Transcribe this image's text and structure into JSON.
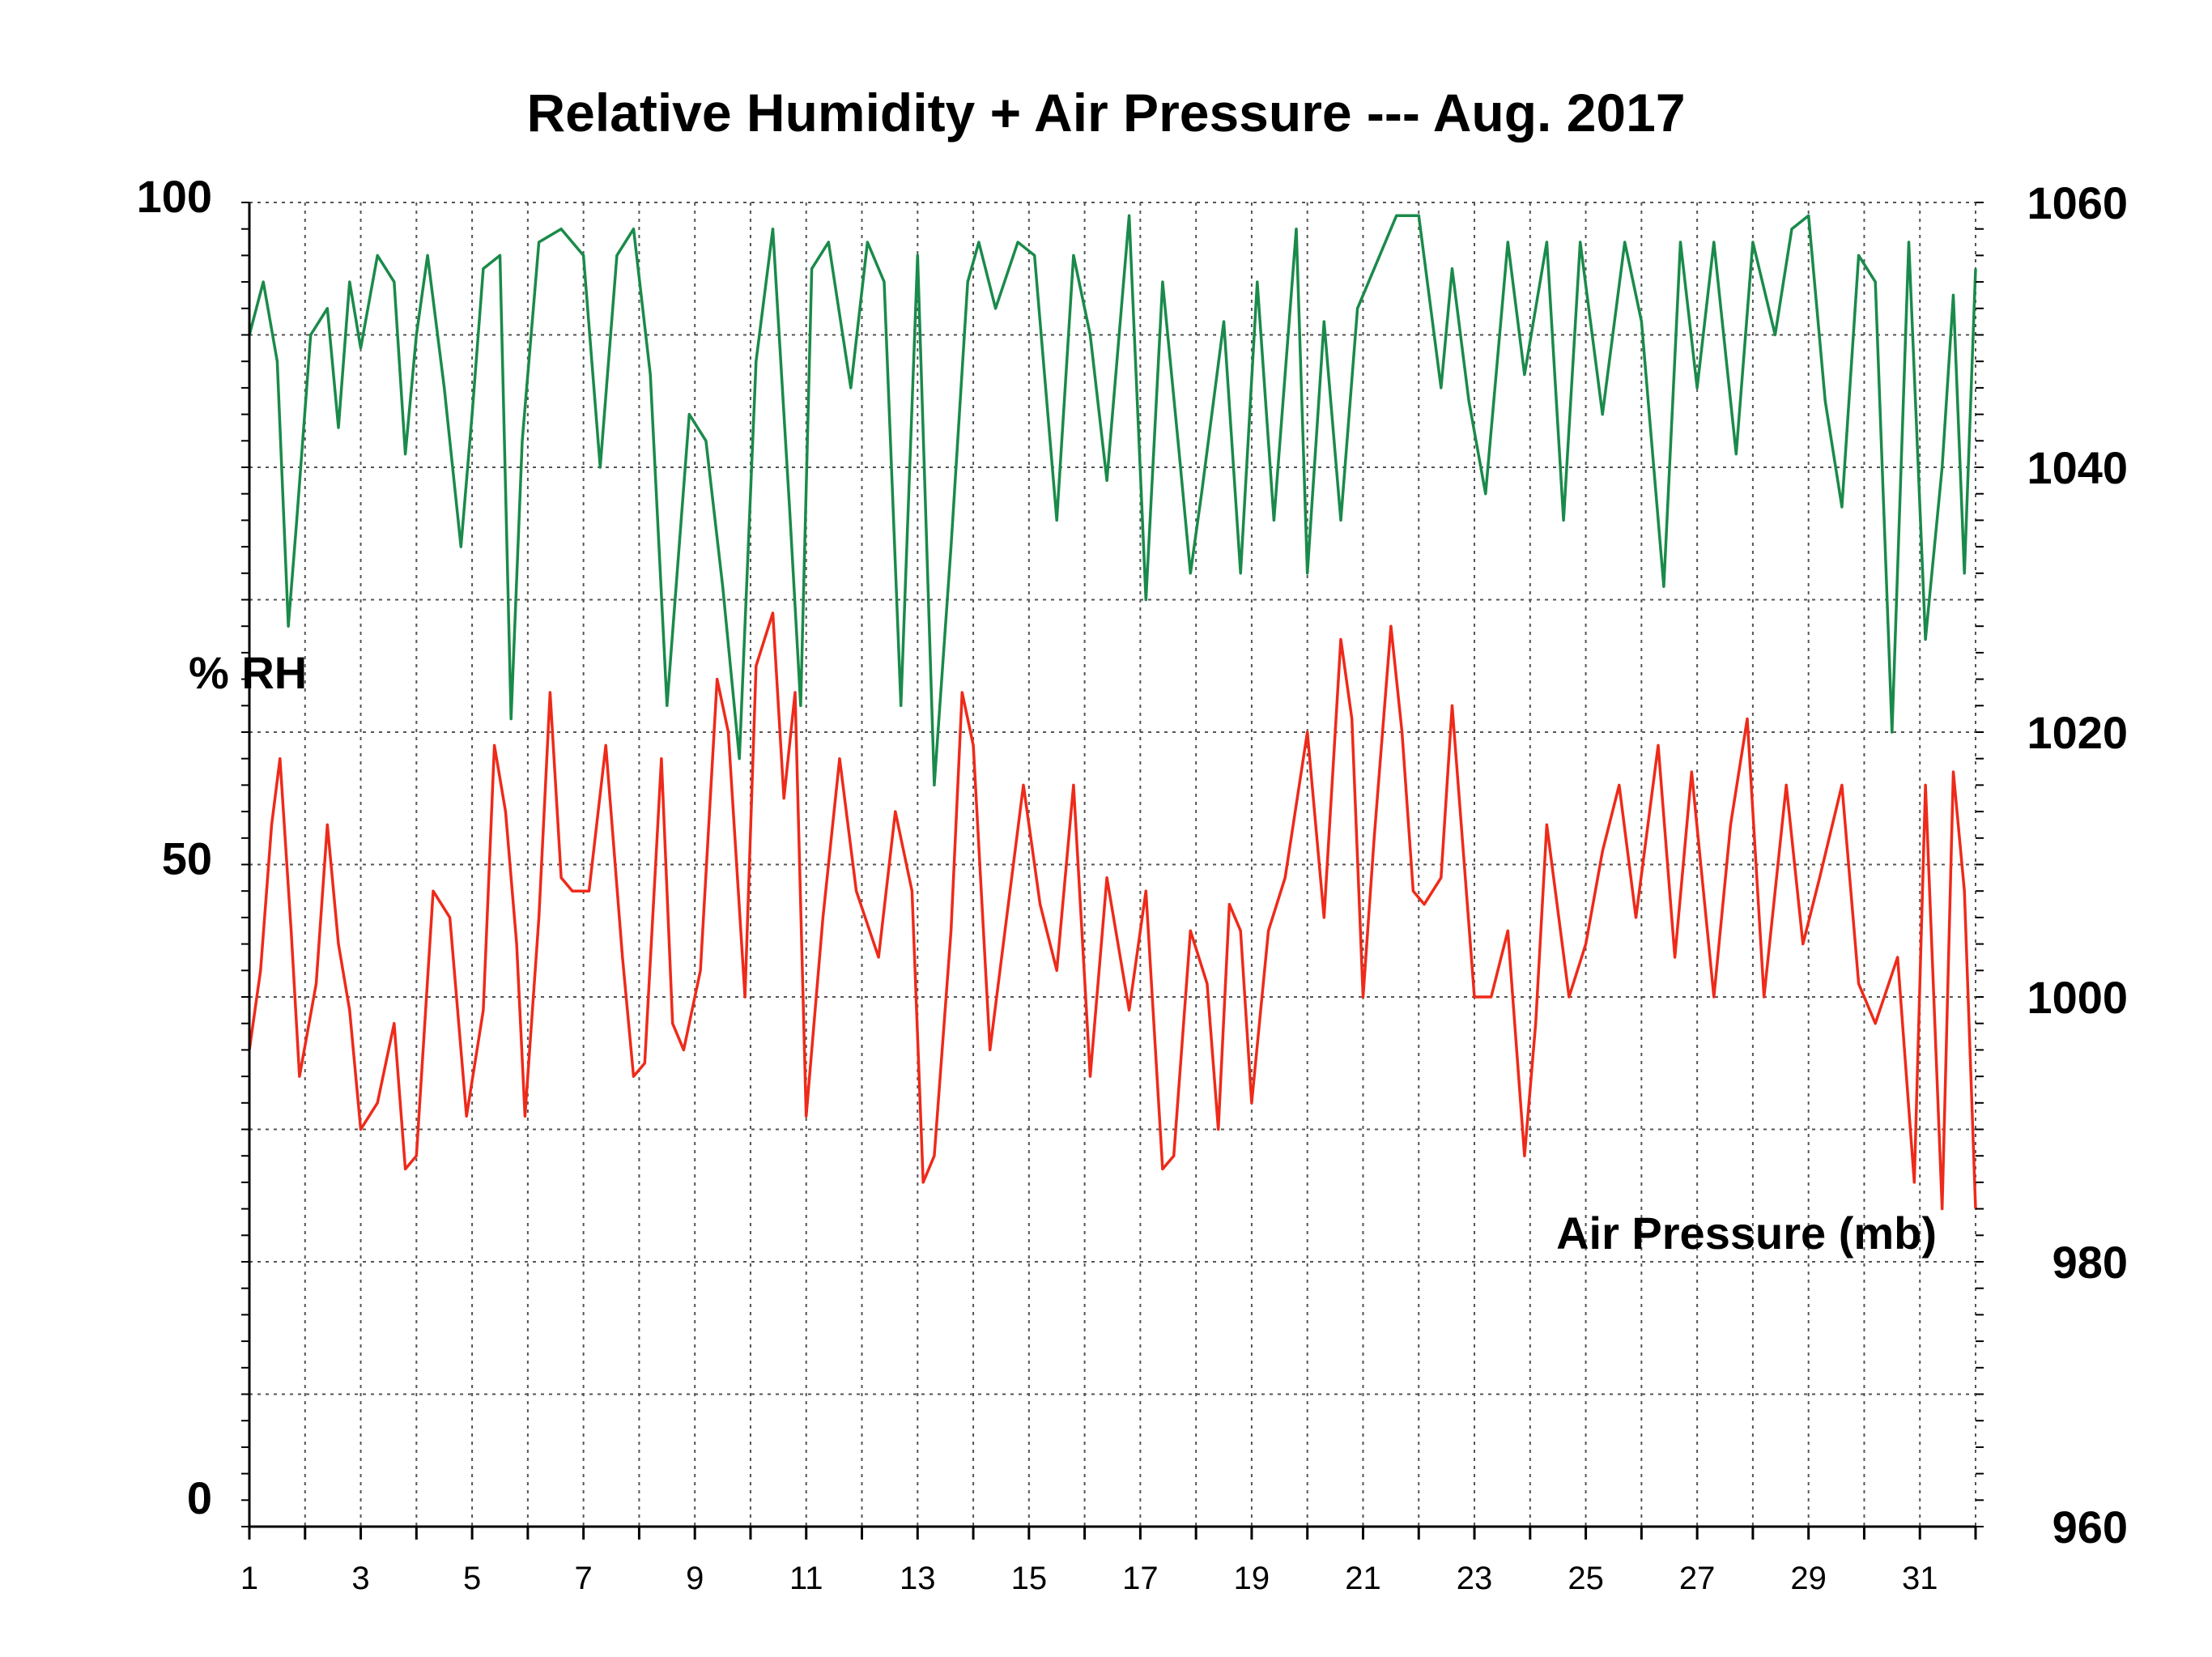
{
  "chart_data": {
    "type": "line",
    "title": "Relative Humidity + Air Pressure --- Aug. 2017",
    "xlabel": "",
    "left_axis": {
      "label": "% RH",
      "range": [
        0,
        100
      ],
      "ticks": [
        "0",
        "50",
        "100"
      ]
    },
    "right_axis": {
      "label": "Air Pressure (mb)",
      "range": [
        960,
        1060
      ],
      "ticks": [
        "960",
        "980",
        "1000",
        "1020",
        "1040",
        "1060"
      ]
    },
    "xlim": [
      1,
      32
    ],
    "x_ticks": [
      "1",
      "3",
      "5",
      "7",
      "9",
      "11",
      "13",
      "15",
      "17",
      "19",
      "21",
      "23",
      "25",
      "27",
      "29",
      "31"
    ],
    "grid": true,
    "series": [
      {
        "name": "% RH",
        "axis": "left",
        "color": "#1a8a4a",
        "x": [
          1.0,
          1.25,
          1.5,
          1.7,
          1.85,
          2.1,
          2.4,
          2.6,
          2.8,
          3.0,
          3.3,
          3.6,
          3.8,
          4.0,
          4.2,
          4.5,
          4.8,
          5.0,
          5.2,
          5.5,
          5.7,
          5.9,
          6.2,
          6.6,
          7.0,
          7.3,
          7.6,
          7.9,
          8.2,
          8.5,
          8.9,
          9.2,
          9.5,
          9.8,
          10.1,
          10.4,
          10.7,
          10.9,
          11.1,
          11.4,
          11.8,
          12.1,
          12.4,
          12.7,
          13.0,
          13.3,
          13.6,
          13.9,
          14.1,
          14.4,
          14.8,
          15.1,
          15.5,
          15.8,
          16.1,
          16.4,
          16.8,
          17.1,
          17.4,
          17.7,
          17.9,
          18.1,
          18.5,
          18.8,
          19.1,
          19.4,
          19.8,
          20.0,
          20.3,
          20.6,
          20.9,
          21.2,
          21.6,
          22.0,
          22.4,
          22.6,
          22.9,
          23.2,
          23.6,
          23.9,
          24.3,
          24.6,
          24.9,
          25.3,
          25.7,
          26.0,
          26.4,
          26.7,
          27.0,
          27.3,
          27.7,
          28.0,
          28.4,
          28.7,
          29.0,
          29.3,
          29.6,
          29.9,
          30.2,
          30.5,
          30.8,
          31.1,
          31.4,
          31.6,
          31.8,
          32.0
        ],
        "y": [
          90,
          94,
          88,
          68,
          76,
          90,
          92,
          83,
          94,
          89,
          96,
          94,
          81,
          90,
          96,
          86,
          74,
          84,
          95,
          96,
          61,
          82,
          97,
          98,
          96,
          80,
          96,
          98,
          87,
          62,
          84,
          82,
          71,
          58,
          88,
          98,
          77,
          62,
          95,
          97,
          86,
          97,
          94,
          62,
          96,
          56,
          74,
          94,
          97,
          92,
          97,
          96,
          76,
          96,
          90,
          79,
          99,
          70,
          94,
          81,
          72,
          78,
          91,
          72,
          94,
          76,
          98,
          72,
          91,
          76,
          92,
          95,
          99,
          99,
          86,
          95,
          85,
          78,
          97,
          87,
          97,
          76,
          97,
          84,
          97,
          91,
          71,
          97,
          86,
          97,
          81,
          97,
          90,
          98,
          99,
          85,
          77,
          96,
          94,
          60,
          97,
          67,
          80,
          93,
          72,
          95
        ]
      },
      {
        "name": "Air Pressure (mb)",
        "axis": "right",
        "color": "#ee2a1a",
        "x": [
          1.0,
          1.2,
          1.4,
          1.55,
          1.75,
          1.9,
          2.2,
          2.4,
          2.6,
          2.8,
          3.0,
          3.3,
          3.6,
          3.8,
          4.0,
          4.3,
          4.6,
          4.9,
          5.2,
          5.4,
          5.6,
          5.8,
          5.95,
          6.2,
          6.4,
          6.6,
          6.8,
          7.1,
          7.4,
          7.7,
          7.9,
          8.1,
          8.4,
          8.6,
          8.8,
          9.1,
          9.4,
          9.6,
          9.9,
          10.1,
          10.4,
          10.6,
          10.8,
          11.0,
          11.3,
          11.6,
          11.9,
          12.3,
          12.6,
          12.9,
          13.1,
          13.3,
          13.6,
          13.8,
          14.0,
          14.3,
          14.6,
          14.9,
          15.2,
          15.5,
          15.8,
          16.1,
          16.4,
          16.8,
          17.1,
          17.4,
          17.6,
          17.9,
          18.2,
          18.4,
          18.6,
          18.8,
          19.0,
          19.3,
          19.6,
          20.0,
          20.3,
          20.6,
          20.8,
          21.0,
          21.2,
          21.5,
          21.7,
          21.9,
          22.1,
          22.4,
          22.6,
          22.8,
          23.0,
          23.3,
          23.6,
          23.9,
          24.1,
          24.3,
          24.7,
          25.0,
          25.3,
          25.6,
          25.9,
          26.3,
          26.6,
          26.9,
          27.3,
          27.6,
          27.9,
          28.2,
          28.6,
          28.9,
          29.2,
          29.6,
          29.9,
          30.2,
          30.6,
          30.9,
          31.1,
          31.4,
          31.6,
          31.8,
          32.0
        ],
        "y": [
          996,
          1002,
          1013,
          1018,
          1005,
          994,
          1001,
          1013,
          1004,
          999,
          990,
          992,
          998,
          987,
          988,
          1008,
          1006,
          991,
          999,
          1019,
          1014,
          1004,
          991,
          1006,
          1023,
          1009,
          1008,
          1008,
          1019,
          1003,
          994,
          995,
          1018,
          998,
          996,
          1002,
          1024,
          1020,
          1000,
          1025,
          1029,
          1015,
          1023,
          991,
          1006,
          1018,
          1008,
          1003,
          1014,
          1008,
          986,
          988,
          1005,
          1023,
          1019,
          996,
          1006,
          1016,
          1007,
          1002,
          1016,
          994,
          1009,
          999,
          1008,
          987,
          988,
          1005,
          1001,
          990,
          1007,
          1005,
          992,
          1005,
          1009,
          1020,
          1006,
          1027,
          1021,
          1000,
          1012,
          1028,
          1020,
          1008,
          1007,
          1009,
          1022,
          1011,
          1000,
          1000,
          1005,
          988,
          998,
          1013,
          1000,
          1004,
          1011,
          1016,
          1006,
          1019,
          1003,
          1017,
          1000,
          1013,
          1021,
          1000,
          1016,
          1004,
          1009,
          1016,
          1001,
          998,
          1003,
          986,
          1016,
          984,
          1017,
          1008,
          984
        ]
      }
    ]
  }
}
